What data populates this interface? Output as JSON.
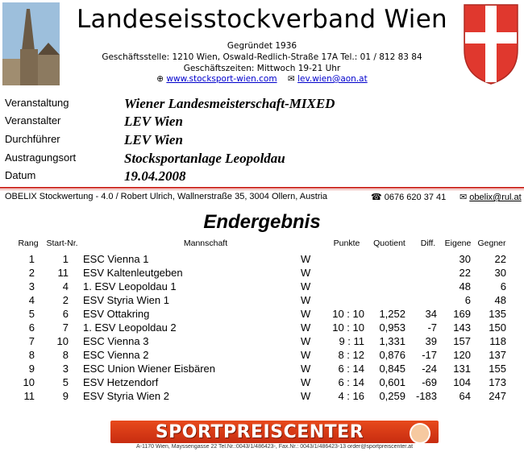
{
  "header": {
    "title": "Landeseisstockverband Wien",
    "founded": "Gegründet 1936",
    "office": "Geschäftsstelle: 1210 Wien, Oswald-Redlich-Straße 17A Tel.: 01 / 812 83 84",
    "hours": "Geschäftszeiten: Mittwoch 19-21 Uhr",
    "website": "www.stocksport-wien.com",
    "email": "lev.wien@aon.at"
  },
  "info": {
    "items": [
      {
        "label": "Veranstaltung",
        "value": "Wiener Landesmeisterschaft-MIXED"
      },
      {
        "label": "Veranstalter",
        "value": "LEV Wien"
      },
      {
        "label": "Durchführer",
        "value": "LEV Wien"
      },
      {
        "label": "Austragungsort",
        "value": "Stocksportanlage Leopoldau"
      },
      {
        "label": "Datum",
        "value": "19.04.2008"
      }
    ]
  },
  "org": {
    "software": "OBELIX Stockwertung - 4.0 / Robert Ulrich, Wallnerstraße 35, 3004 Ollern, Austria",
    "phone": "0676 620 37 41",
    "email": "obelix@rul.at"
  },
  "results": {
    "heading": "Endergebnis",
    "columns": {
      "rang": "Rang",
      "start": "Start-Nr.",
      "team": "Mannschaft",
      "punkte": "Punkte",
      "quotient": "Quotient",
      "diff": "Diff.",
      "eigene": "Eigene",
      "gegner": "Gegner"
    },
    "rows": [
      {
        "rang": "1",
        "start": "1",
        "team": "ESC Vienna  1",
        "w": "W",
        "punkte": "",
        "quotient": "",
        "diff": "",
        "eigene": "30",
        "gegner": "22"
      },
      {
        "rang": "2",
        "start": "11",
        "team": "ESV Kaltenleutgeben",
        "w": "W",
        "punkte": "",
        "quotient": "",
        "diff": "",
        "eigene": "22",
        "gegner": "30"
      },
      {
        "rang": "3",
        "start": "4",
        "team": "1. ESV Leopoldau  1",
        "w": "W",
        "punkte": "",
        "quotient": "",
        "diff": "",
        "eigene": "48",
        "gegner": "6"
      },
      {
        "rang": "4",
        "start": "2",
        "team": "ESV Styria Wien  1",
        "w": "W",
        "punkte": "",
        "quotient": "",
        "diff": "",
        "eigene": "6",
        "gegner": "48"
      },
      {
        "rang": "5",
        "start": "6",
        "team": "ESV Ottakring",
        "w": "W",
        "punkte": "10 : 10",
        "quotient": "1,252",
        "diff": "34",
        "eigene": "169",
        "gegner": "135"
      },
      {
        "rang": "6",
        "start": "7",
        "team": "1. ESV Leopoldau  2",
        "w": "W",
        "punkte": "10 : 10",
        "quotient": "0,953",
        "diff": "-7",
        "eigene": "143",
        "gegner": "150"
      },
      {
        "rang": "7",
        "start": "10",
        "team": "ESC Vienna  3",
        "w": "W",
        "punkte": "9 : 11",
        "quotient": "1,331",
        "diff": "39",
        "eigene": "157",
        "gegner": "118"
      },
      {
        "rang": "8",
        "start": "8",
        "team": "ESC Vienna  2",
        "w": "W",
        "punkte": "8 : 12",
        "quotient": "0,876",
        "diff": "-17",
        "eigene": "120",
        "gegner": "137"
      },
      {
        "rang": "9",
        "start": "3",
        "team": "ESC Union Wiener Eisbären",
        "w": "W",
        "punkte": "6 : 14",
        "quotient": "0,845",
        "diff": "-24",
        "eigene": "131",
        "gegner": "155"
      },
      {
        "rang": "10",
        "start": "5",
        "team": "ESV Hetzendorf",
        "w": "W",
        "punkte": "6 : 14",
        "quotient": "0,601",
        "diff": "-69",
        "eigene": "104",
        "gegner": "173"
      },
      {
        "rang": "11",
        "start": "9",
        "team": "ESV Styria Wien  2",
        "w": "W",
        "punkte": "4 : 16",
        "quotient": "0,259",
        "diff": "-183",
        "eigene": "64",
        "gegner": "247"
      }
    ]
  },
  "sponsor": {
    "name": "SPORTPREISCENTER",
    "address": "A-1170 Wien, Mayssengasse 22 Tel.Nr.:0043/1/486423-, Fax.Nr.: 0043/1/486423-13 order@sportpreiscenter.at"
  },
  "colors": {
    "accent_red": "#d0342c",
    "link_blue": "#0000cc",
    "sponsor_orange": "#e84a1c"
  }
}
